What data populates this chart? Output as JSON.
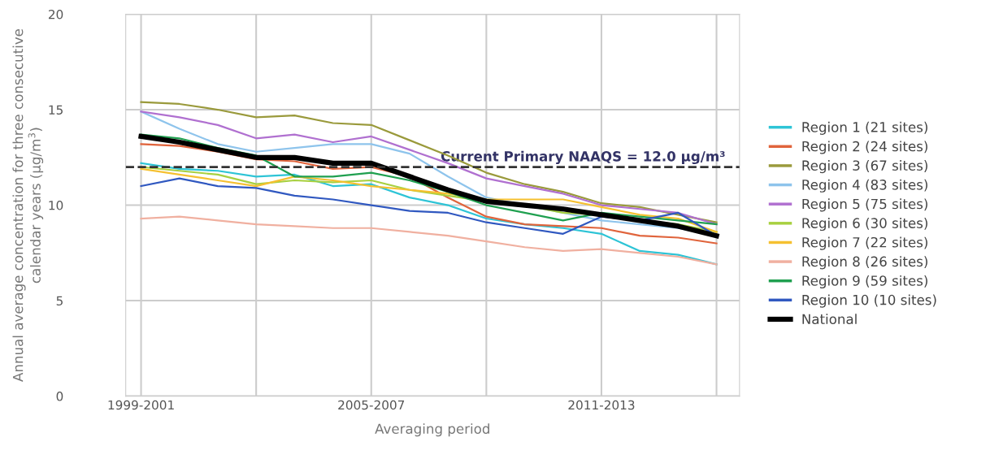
{
  "chart_data": {
    "type": "line",
    "xlabel": "Averaging period",
    "ylabel": "Annual average concentration for three consecutive calendar years (μg/m$^{3}$)",
    "categories": [
      "1999-2001",
      null,
      null,
      null,
      null,
      null,
      "2005-2007",
      null,
      null,
      null,
      null,
      null,
      "2011-2013",
      null,
      null,
      null
    ],
    "ylim": [
      0,
      20
    ],
    "yticks": [
      0,
      5,
      10,
      15,
      20
    ],
    "grid": true,
    "legend": "right",
    "marker": "none",
    "line_style": "solid",
    "ref_lines": [
      {
        "axis": "y",
        "value": 12,
        "label": "Current Primary NAAQS = 12.0 μg/m³",
        "color": "#333333",
        "line_style": "dashed"
      }
    ],
    "series": [
      {
        "name": "Region 1 (21 sites)",
        "color": "#2ec4d6",
        "values": [
          12.2,
          11.9,
          11.8,
          11.5,
          11.6,
          11.0,
          11.1,
          10.4,
          10.0,
          9.3,
          9.0,
          8.8,
          8.5,
          7.6,
          7.4,
          6.9
        ]
      },
      {
        "name": "Region 2 (24 sites)",
        "color": "#e0643c",
        "values": [
          13.2,
          13.1,
          12.8,
          12.4,
          12.3,
          11.9,
          12.0,
          11.5,
          10.4,
          9.4,
          9.0,
          8.9,
          8.8,
          8.4,
          8.3,
          8.0
        ]
      },
      {
        "name": "Region 3 (67 sites)",
        "color": "#9a9a3c",
        "values": [
          15.4,
          15.3,
          15.0,
          14.6,
          14.7,
          14.3,
          14.2,
          13.4,
          12.6,
          11.7,
          11.1,
          10.7,
          10.1,
          9.9,
          9.5,
          9.1
        ]
      },
      {
        "name": "Region 4 (83 sites)",
        "color": "#8ec4ec",
        "values": [
          14.9,
          14.0,
          13.2,
          12.8,
          13.0,
          13.2,
          13.2,
          12.7,
          11.5,
          10.4,
          10.0,
          9.6,
          9.2,
          9.0,
          8.8,
          8.4
        ]
      },
      {
        "name": "Region 5 (75 sites)",
        "color": "#b070d0",
        "values": [
          14.9,
          14.6,
          14.2,
          13.5,
          13.7,
          13.3,
          13.6,
          12.9,
          12.2,
          11.4,
          11.0,
          10.6,
          10.0,
          9.8,
          9.6,
          9.0
        ]
      },
      {
        "name": "Region 6 (30 sites)",
        "color": "#a8d040",
        "values": [
          12.0,
          11.8,
          11.6,
          11.1,
          11.3,
          11.2,
          11.3,
          10.8,
          10.5,
          10.2,
          10.0,
          9.6,
          9.5,
          9.2,
          9.0,
          8.6
        ]
      },
      {
        "name": "Region 7 (22 sites)",
        "color": "#f5c030",
        "values": [
          11.9,
          11.6,
          11.3,
          11.0,
          11.5,
          11.3,
          11.0,
          10.8,
          10.6,
          10.3,
          10.3,
          10.3,
          9.9,
          9.5,
          9.3,
          8.6
        ]
      },
      {
        "name": "Region 8 (26 sites)",
        "color": "#f0b0a0",
        "values": [
          9.3,
          9.4,
          9.2,
          9.0,
          8.9,
          8.8,
          8.8,
          8.6,
          8.4,
          8.1,
          7.8,
          7.6,
          7.7,
          7.5,
          7.3,
          6.9
        ]
      },
      {
        "name": "Region 9 (59 sites)",
        "color": "#20a050",
        "values": [
          13.7,
          13.5,
          13.0,
          12.6,
          11.5,
          11.5,
          11.7,
          11.3,
          10.7,
          10.0,
          9.6,
          9.2,
          9.6,
          9.4,
          9.2,
          9.0
        ]
      },
      {
        "name": "Region 10 (10 sites)",
        "color": "#3058c0",
        "values": [
          11.0,
          11.4,
          11.0,
          10.9,
          10.5,
          10.3,
          10.0,
          9.7,
          9.6,
          9.1,
          8.8,
          8.5,
          9.4,
          9.2,
          9.6,
          8.4
        ]
      },
      {
        "name": "National",
        "color": "#000000",
        "values": [
          13.6,
          13.3,
          12.9,
          12.5,
          12.5,
          12.2,
          12.2,
          11.5,
          10.8,
          10.2,
          10.0,
          9.8,
          9.5,
          9.2,
          8.9,
          8.4
        ]
      }
    ]
  }
}
